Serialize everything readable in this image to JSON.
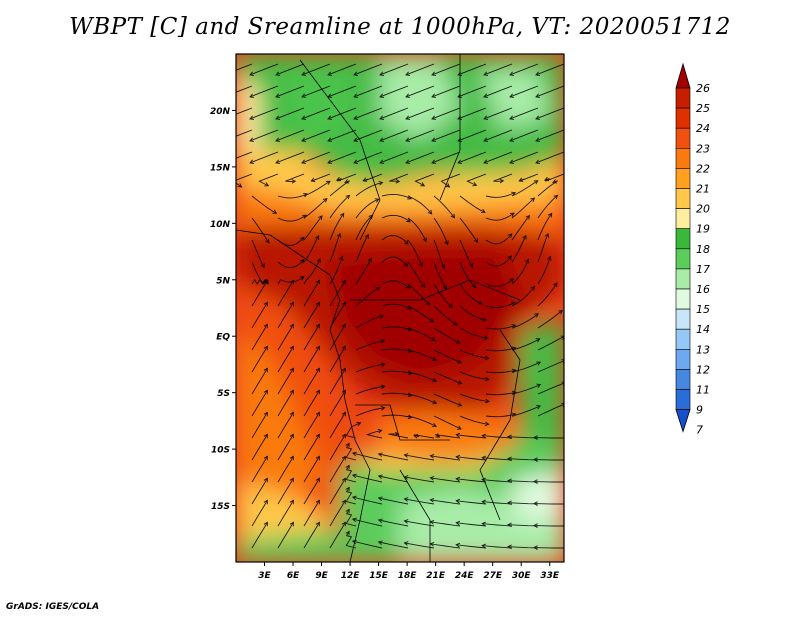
{
  "title": "WBPT [C] and Sreamline at 1000hPa, VT: 2020051712",
  "credit": "GrADS: IGES/COLA",
  "map": {
    "lat_labels": [
      "20N",
      "15N",
      "10N",
      "5N",
      "EQ",
      "5S",
      "10S",
      "15S"
    ],
    "lat_values": [
      20,
      15,
      10,
      5,
      0,
      -5,
      -10,
      -15
    ],
    "lon_labels": [
      "3E",
      "6E",
      "9E",
      "12E",
      "15E",
      "18E",
      "21E",
      "24E",
      "27E",
      "30E",
      "33E"
    ],
    "lon_values": [
      3,
      6,
      9,
      12,
      15,
      18,
      21,
      24,
      27,
      30,
      33
    ],
    "lon_range": [
      0,
      34.5
    ],
    "lat_range": [
      -20,
      25
    ]
  },
  "colorbar": {
    "levels": [
      "26",
      "25",
      "24",
      "23",
      "22",
      "21",
      "20",
      "19",
      "18",
      "17",
      "16",
      "15",
      "14",
      "13",
      "12",
      "11",
      "9",
      "7"
    ],
    "colors": [
      "#a50000",
      "#c81e00",
      "#e03000",
      "#f05010",
      "#fa7a10",
      "#ffa020",
      "#ffc84a",
      "#ffeda0",
      "#3ab83a",
      "#5ccc5c",
      "#a8eca8",
      "#e0fae0",
      "#c8e6fa",
      "#96c8f5",
      "#6ea8ee",
      "#4688e0",
      "#2a6cd8",
      "#1450cc"
    ]
  }
}
